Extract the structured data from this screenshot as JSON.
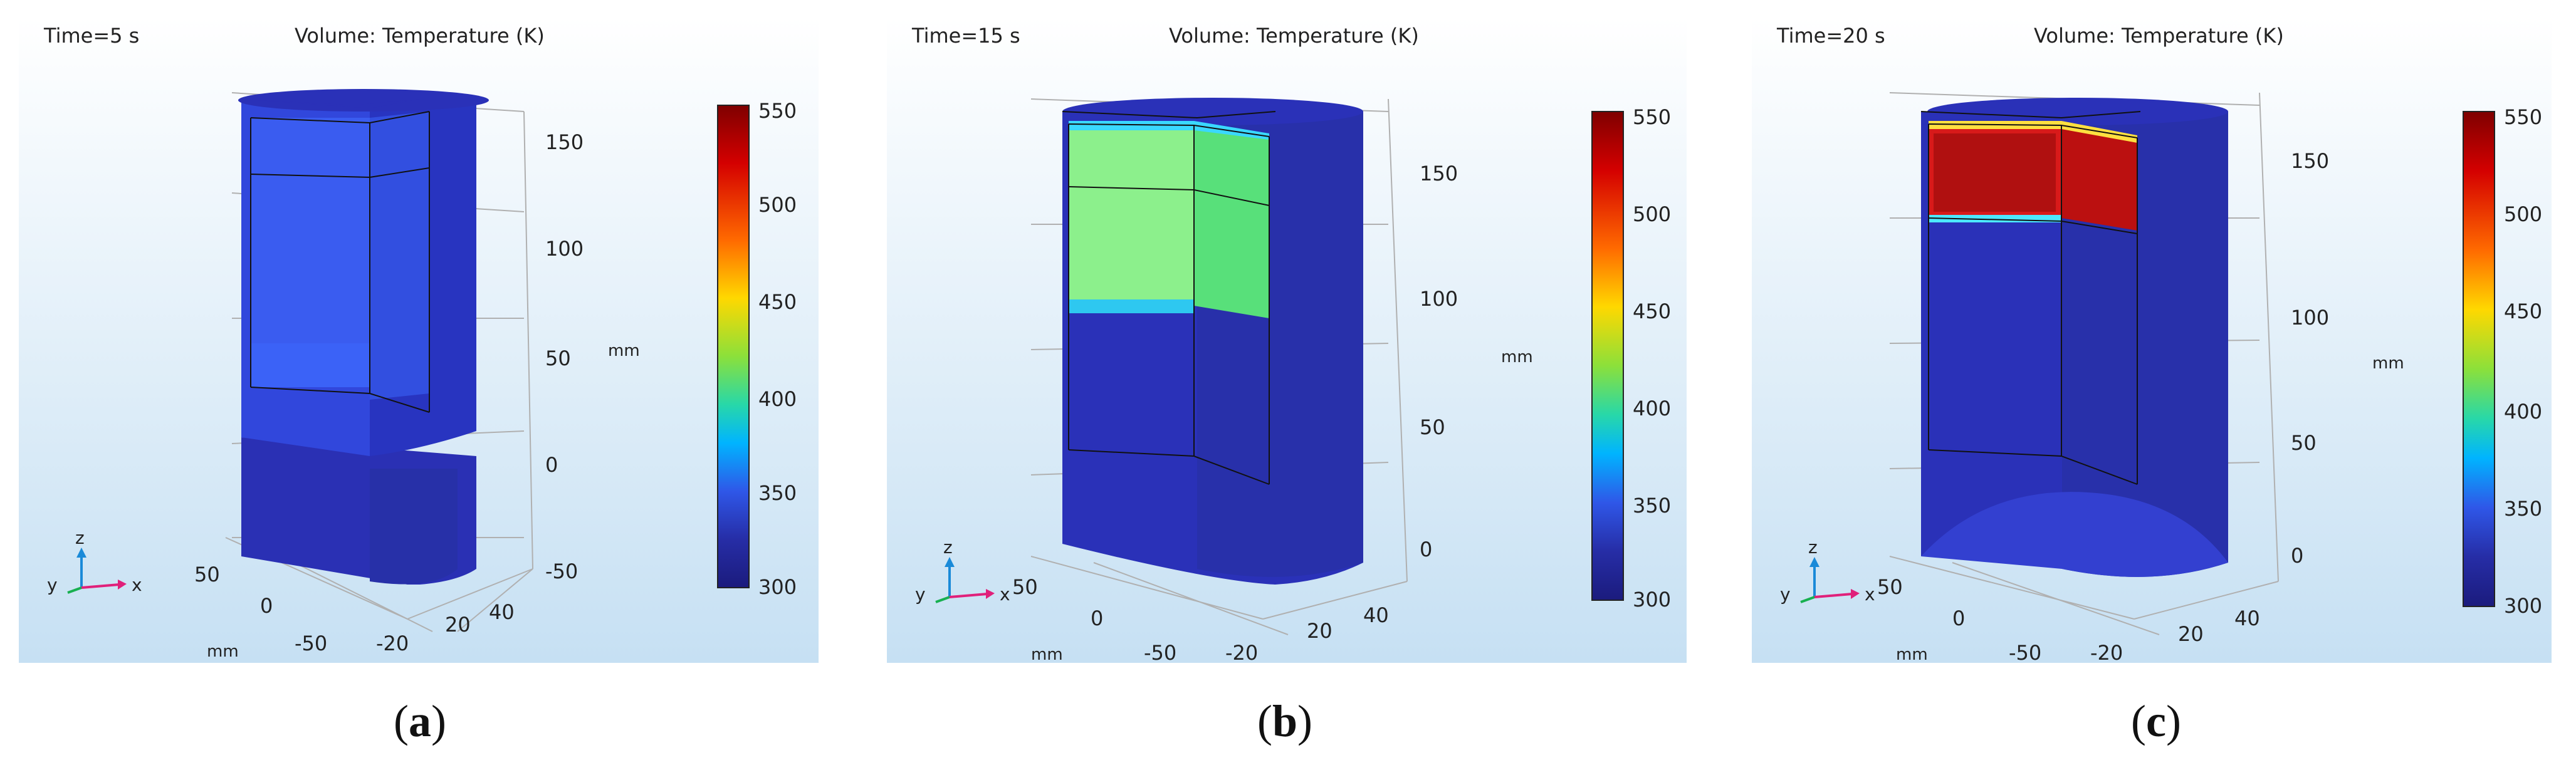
{
  "figure": {
    "colorbar": {
      "ticks": [
        "550",
        "500",
        "450",
        "400",
        "350",
        "300"
      ],
      "stops": [
        "#7f0000",
        "#d40000",
        "#ff6a00",
        "#ffd800",
        "#8ce03a",
        "#28d8a8",
        "#00b4ff",
        "#2f57e8",
        "#262da6",
        "#1b1b7d"
      ]
    },
    "colors": {
      "background_top": "#ffffff",
      "background_bottom": "#c6e0f3",
      "cylinder": "#2b34b8",
      "cylinder_dark": "#1f2792"
    }
  },
  "panels": [
    {
      "time_label": "Time=5 s",
      "plot_title": "Volume: Temperature (K)",
      "z_ticks": [
        "150",
        "100",
        "50",
        "0",
        "-50"
      ],
      "z_unit": "mm",
      "x_ticks": [
        "50",
        "0",
        "-50"
      ],
      "x_unit": "mm",
      "y_ticks": [
        "-20",
        "20",
        "40"
      ],
      "axis_triad": {
        "z": "z",
        "y": "y",
        "x": "x"
      },
      "hot_region_temperature_K": 320,
      "caption": "a"
    },
    {
      "time_label": "Time=15 s",
      "plot_title": "Volume: Temperature (K)",
      "z_ticks": [
        "150",
        "100",
        "50",
        "0"
      ],
      "z_unit": "mm",
      "x_ticks": [
        "50",
        "0",
        "-50"
      ],
      "x_unit": "mm",
      "y_ticks": [
        "-20",
        "20",
        "40"
      ],
      "axis_triad": {
        "z": "z",
        "y": "y",
        "x": "x"
      },
      "hot_region_temperature_K": 420,
      "caption": "b"
    },
    {
      "time_label": "Time=20 s",
      "plot_title": "Volume: Temperature (K)",
      "z_ticks": [
        "150",
        "100",
        "50",
        "0"
      ],
      "z_unit": "mm",
      "x_ticks": [
        "50",
        "0",
        "-50"
      ],
      "x_unit": "mm",
      "y_ticks": [
        "-20",
        "20",
        "40"
      ],
      "axis_triad": {
        "z": "z",
        "y": "y",
        "x": "x"
      },
      "hot_region_temperature_K": 545,
      "caption": "c"
    }
  ]
}
